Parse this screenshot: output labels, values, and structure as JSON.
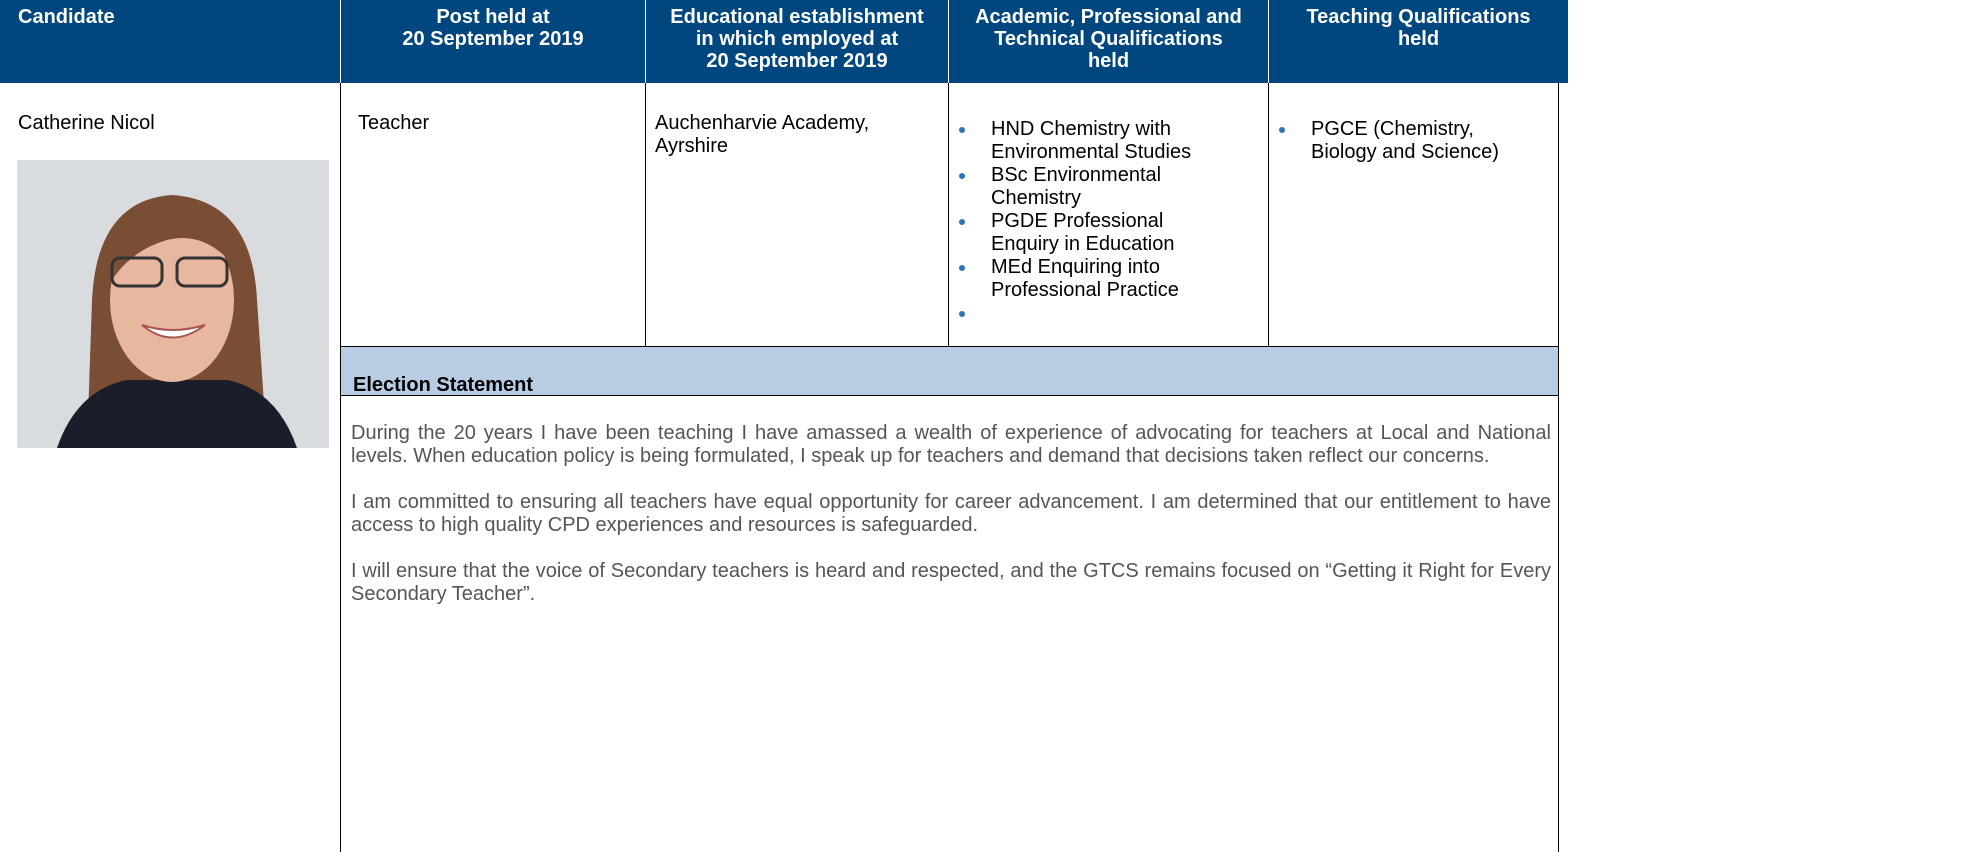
{
  "table": {
    "headers": [
      "Candidate",
      "Post held at\n20 September 2019",
      "Educational establishment\nin which employed at\n20 September 2019",
      "Academic, Professional and\nTechnical Qualifications\nheld",
      "Teaching Qualifications\nheld"
    ],
    "row": {
      "candidate": "Catherine Nicol",
      "post": "Teacher",
      "establishment": "Auchenharvie Academy,\nAyrshire",
      "academic_qualifications": [
        "HND Chemistry with\nEnvironmental Studies",
        "BSc Environmental\nChemistry",
        "PGDE Professional\nEnquiry in Education",
        "MEd Enquiring into\nProfessional Practice"
      ],
      "teaching_qualifications": [
        "PGCE (Chemistry,\nBiology and Science)"
      ]
    },
    "statement": {
      "title": "Election Statement",
      "paragraphs": [
        "During the 20 years I have been teaching I have amassed a wealth of experience of advocating for teachers at Local and National levels. When education policy is being formulated, I speak up for teachers and demand that decisions taken reflect our concerns.",
        "I am committed to ensuring all teachers have equal opportunity for career advancement.  I am determined that our entitlement to have access to high quality CPD experiences and resources is safeguarded.",
        "I will ensure that the voice of Secondary teachers is heard and respected, and the GTCS remains focused on “Getting it Right for Every Secondary Teacher”."
      ]
    }
  }
}
